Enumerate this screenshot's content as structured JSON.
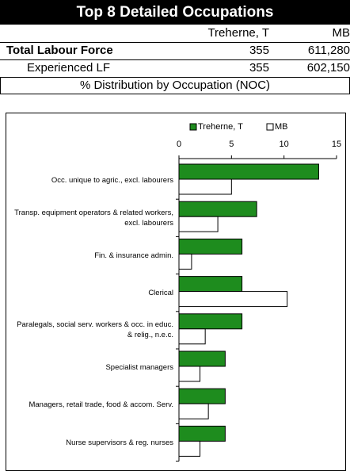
{
  "header": {
    "title": "Top 8 Detailed Occupations"
  },
  "table": {
    "columns": [
      "Treherne, T",
      "MB"
    ],
    "rows": [
      [
        "Total Labour Force",
        "355",
        "611,280"
      ],
      [
        "Experienced LF",
        "355",
        "602,150"
      ]
    ],
    "caption": "% Distribution by Occupation (NOC)"
  },
  "chart_data": {
    "type": "hbar",
    "categories": [
      "Occ. unique to agric., excl. labourers",
      "Transp. equipment operators & related workers, excl. labourers",
      "Fin. & insurance admin.",
      "Clerical",
      "Paralegals, social serv. workers & occ. in educ. & relig., n.e.c.",
      "Specialist managers",
      "Managers, retail trade, food & accom. Serv.",
      "Nurse supervisors & reg. nurses"
    ],
    "series": [
      {
        "name": "Treherne, T",
        "color": "#1e8c1e",
        "values": [
          13.3,
          7.4,
          6.0,
          6.0,
          6.0,
          4.4,
          4.4,
          4.4
        ]
      },
      {
        "name": "MB",
        "color": "#ffffff",
        "values": [
          5.0,
          3.7,
          1.2,
          10.3,
          2.5,
          2.0,
          2.8,
          2.0
        ]
      }
    ],
    "xlim": [
      0,
      15
    ],
    "xticks": [
      0,
      5,
      10,
      15
    ],
    "legend": "top"
  }
}
